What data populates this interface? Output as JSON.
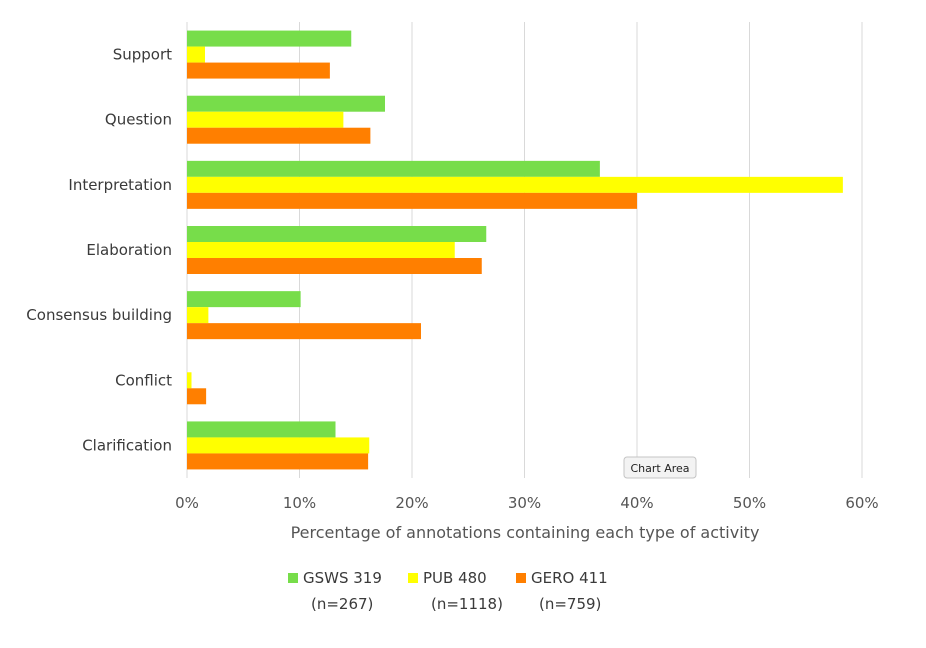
{
  "chart_data": {
    "type": "bar",
    "orientation": "horizontal",
    "categories": [
      "Support",
      "Question",
      "Interpretation",
      "Elaboration",
      "Consensus building",
      "Conflict",
      "Clarification"
    ],
    "series": [
      {
        "name": "GSWS 319",
        "name_line2": "(n=267)",
        "color": "#77dd4a",
        "values": [
          14.6,
          17.6,
          36.7,
          26.6,
          10.1,
          0,
          13.2
        ]
      },
      {
        "name": "PUB 480",
        "name_line2": "(n=1118)",
        "color": "#ffff00",
        "values": [
          1.6,
          13.9,
          58.3,
          23.8,
          1.9,
          0.4,
          16.2
        ]
      },
      {
        "name": "GERO 411",
        "name_line2": "(n=759)",
        "color": "#ff7f00",
        "values": [
          12.7,
          16.3,
          40.0,
          26.2,
          20.8,
          1.7,
          16.1
        ]
      }
    ],
    "xlim": [
      0,
      60
    ],
    "x_ticks": [
      0,
      10,
      20,
      30,
      40,
      50,
      60
    ],
    "x_tick_labels": [
      "0%",
      "10%",
      "20%",
      "30%",
      "40%",
      "50%",
      "60%"
    ],
    "xlabel": "Percentage of annotations containing each type of activity",
    "ylabel": "",
    "title": "",
    "grid": "vertical",
    "legend_position": "bottom"
  },
  "tooltip": {
    "text": "Chart Area"
  }
}
